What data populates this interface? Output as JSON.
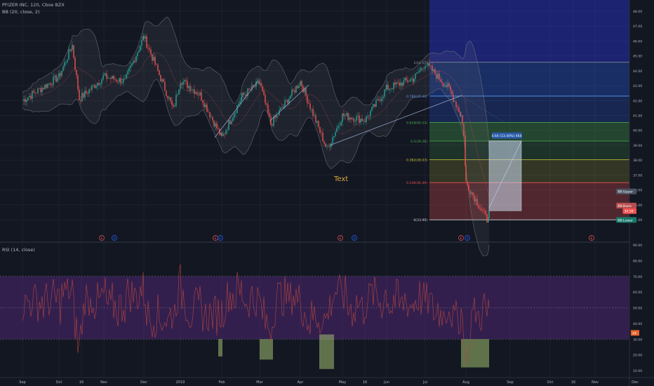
{
  "header": {
    "symbol_line": "PFIZER INC, 120, Cboe BZX",
    "indicator_line": "BB (20, close, 2)",
    "annotation_text": "Text"
  },
  "colors": {
    "background": "#131722",
    "candle_up": "#26a69a",
    "candle_down": "#ef5350",
    "bb_band": "#787b86",
    "rsi_line": "#b2453f",
    "rsi_band_fill": "#5b2a86",
    "fib_0": "#d1d4dc",
    "fib_236": "#ef5350",
    "fib_382": "#c9c631",
    "fib_5": "#4caf50",
    "fib_618": "#4caf50",
    "fib_786": "#5b9cf6",
    "fib_1": "#9598a1"
  },
  "chart_data": [
    {
      "type": "candlestick",
      "title": "PFIZER INC, 120, Cboe BZX",
      "indicators": [
        "BB (20, close, 2)"
      ],
      "x_tick_labels": [
        "Sep",
        "Oct",
        "16",
        "Nov",
        "Dec",
        "2019",
        "Feb",
        "Mar",
        "Apr",
        "May",
        "16",
        "Jun",
        "Jul",
        "Aug",
        "Sep",
        "Oct",
        "16",
        "Nov",
        "Dec"
      ],
      "y_tick_labels": [
        "34.00",
        "35.00",
        "36.00",
        "37.00",
        "38.00",
        "39.00",
        "40.00",
        "41.00",
        "42.00",
        "43.00",
        "44.00",
        "45.00",
        "46.00",
        "47.00",
        "48.00"
      ],
      "ylim": [
        33.6,
        48.3
      ],
      "grid": true,
      "price_anchors": [
        {
          "x": "Sep",
          "y": 42.0
        },
        {
          "x": "Oct",
          "y": 43.6
        },
        {
          "x": "Oct 16",
          "y": 45.7
        },
        {
          "x": "Oct 22",
          "y": 42.1
        },
        {
          "x": "Nov",
          "y": 43.6
        },
        {
          "x": "Nov 20",
          "y": 43.3
        },
        {
          "x": "Dec",
          "y": 46.3
        },
        {
          "x": "Dec 24",
          "y": 41.4
        },
        {
          "x": "2019",
          "y": 43.4
        },
        {
          "x": "Jan 20",
          "y": 42.4
        },
        {
          "x": "Feb",
          "y": 39.5
        },
        {
          "x": "Feb 20",
          "y": 42.3
        },
        {
          "x": "Mar",
          "y": 43.2
        },
        {
          "x": "Mar 10",
          "y": 40.4
        },
        {
          "x": "Apr",
          "y": 43.3
        },
        {
          "x": "Apr 16",
          "y": 38.7
        },
        {
          "x": "May",
          "y": 41.0
        },
        {
          "x": "May 16",
          "y": 40.7
        },
        {
          "x": "Jun",
          "y": 42.8
        },
        {
          "x": "Jun 25",
          "y": 43.5
        },
        {
          "x": "Jul",
          "y": 44.5
        },
        {
          "x": "Jul 20",
          "y": 42.8
        },
        {
          "x": "Jul 29",
          "y": 41.0
        },
        {
          "x": "Jul 30",
          "y": 39.8
        },
        {
          "x": "Aug",
          "y": 36.5
        },
        {
          "x": "Aug 10",
          "y": 34.0
        },
        {
          "x": "Aug 14",
          "y": 34.6
        }
      ],
      "fibonacci": [
        {
          "level": "1",
          "label": "1(44.57)",
          "price": 44.57
        },
        {
          "level": "0.786",
          "label": "0.786(42.30)",
          "price": 42.3
        },
        {
          "level": "0.618",
          "label": "0.618(40.53)",
          "price": 40.53
        },
        {
          "level": "0.5",
          "label": "0.5(39.28)",
          "price": 39.28
        },
        {
          "level": "0.382",
          "label": "0.382(38.03)",
          "price": 38.03
        },
        {
          "level": "0.236",
          "label": "0.236(36.49)",
          "price": 36.49
        },
        {
          "level": "0",
          "label": "0(33.99)",
          "price": 33.99
        }
      ],
      "measure_label": "4.64 (13.40%) 464",
      "measure_range": [
        34.6,
        39.3
      ],
      "price_labels": [
        {
          "label": "BB:Upper",
          "price": 35.9
        },
        {
          "label": "BB:Basis",
          "price": 34.95
        },
        {
          "label": "34.58",
          "price": 34.58
        },
        {
          "label": "BB:Lower",
          "price": 33.98
        }
      ],
      "events": [
        "E",
        "D",
        "E",
        "D",
        "E",
        "D",
        "E",
        "D",
        "E"
      ]
    },
    {
      "type": "line",
      "title": "RSI (14, close)",
      "y_tick_labels": [
        "10.00",
        "20.00",
        "30.00",
        "40.00",
        "50.00",
        "60.00",
        "70.00",
        "80.00",
        "90.00"
      ],
      "ylim": [
        5,
        91
      ],
      "band": [
        30,
        70
      ],
      "last_value_label": "XX",
      "oversold_boxes": [
        {
          "from": "Feb",
          "to": "Feb 3",
          "y": [
            19,
            30
          ]
        },
        {
          "from": "Mar",
          "to": "Mar 8",
          "y": [
            17,
            30
          ]
        },
        {
          "from": "Apr 14",
          "to": "Apr 30",
          "y": [
            11,
            33
          ]
        },
        {
          "from": "Jul 29",
          "to": "Aug 22",
          "y": [
            12,
            30
          ]
        }
      ]
    }
  ]
}
